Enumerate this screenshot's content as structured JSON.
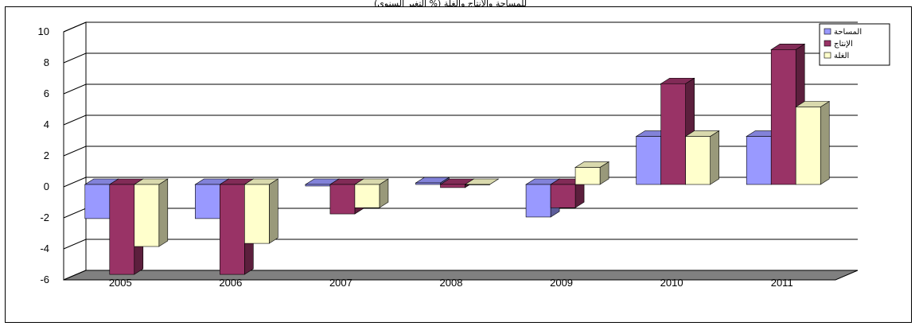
{
  "top_text": "(التغير السنوي %) للمساحة والإنتاج والغلة",
  "colors": {
    "series_area": "#9999ff",
    "series_production": "#993366",
    "series_yield": "#ffffcc",
    "floor": "#808080",
    "grid": "#000000"
  },
  "chart_data": {
    "type": "bar",
    "categories": [
      "2005",
      "2006",
      "2007",
      "2008",
      "2009",
      "2010",
      "2011"
    ],
    "series": [
      {
        "name": "المساحة",
        "values": [
          -2.2,
          -2.2,
          -0.1,
          0.1,
          -2.1,
          3.1,
          3.1
        ]
      },
      {
        "name": "الإنتاج",
        "values": [
          -5.8,
          -5.8,
          -1.9,
          -0.2,
          -1.5,
          6.5,
          8.7
        ]
      },
      {
        "name": "الغلة",
        "values": [
          -4.0,
          -3.8,
          -1.5,
          0.0,
          1.1,
          3.1,
          5.0
        ]
      }
    ],
    "yticks": [
      "-6",
      "-4",
      "-2",
      "0",
      "2",
      "4",
      "6",
      "8",
      "10"
    ],
    "ylim": [
      -6,
      10
    ],
    "grid": true,
    "legend_position": "top-right",
    "title": "",
    "xlabel": "",
    "ylabel": ""
  }
}
